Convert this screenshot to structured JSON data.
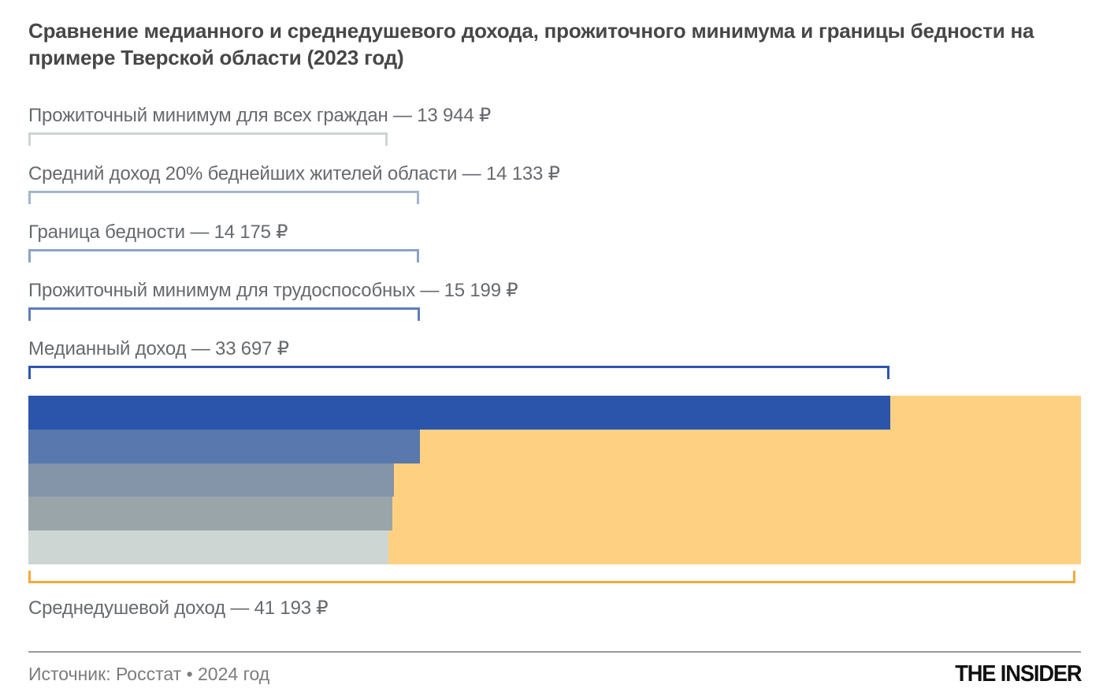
{
  "title": "Сравнение медианного и среднедушевого дохода, прожиточного минимума и границы бедности на примере Тверской области (2023 год)",
  "chart_data": {
    "type": "bar",
    "orientation": "horizontal",
    "unit": "₽",
    "xlim": [
      0,
      41193
    ],
    "region_note": "Тверская область, 2023 год",
    "items": [
      {
        "label": "Прожиточный минимум для всех граждан",
        "value": 13944,
        "display": "Прожиточный минимум для всех граждан — 13 944 ₽",
        "bar_color": "#CDD6D2",
        "bracket_color": "#CBD5D1",
        "bar_pct": 34.2,
        "bracket_pct": 34.1
      },
      {
        "label": "Средний доход 20% беднейших жителей области",
        "value": 14133,
        "display": "Средний доход 20% беднейших жителей области — 14 133 ₽",
        "bar_color": "#9AA5A9",
        "bracket_color": "#A3B6CA",
        "bar_pct": 34.6,
        "bracket_pct": 37.1
      },
      {
        "label": "Граница бедности",
        "value": 14175,
        "display": "Граница бедности — 14 175 ₽",
        "bar_color": "#8495A9",
        "bracket_color": "#8BA3C4",
        "bar_pct": 34.7,
        "bracket_pct": 37.1
      },
      {
        "label": "Прожиточный минимум для трудоспособных",
        "value": 15199,
        "display": "Прожиточный минимум для трудоспособных — 15 199 ₽",
        "bar_color": "#5878AE",
        "bracket_color": "#5C7EBC",
        "bar_pct": 37.2,
        "bracket_pct": 37.2
      },
      {
        "label": "Медианный доход",
        "value": 33697,
        "display": "Медианный доход — 33 697 ₽",
        "bar_color": "#2B55AB",
        "bracket_color": "#2C55AD",
        "bar_pct": 81.9,
        "bracket_pct": 81.8
      }
    ],
    "total": {
      "label": "Среднедушевой доход",
      "value": 41193,
      "display": "Среднедушевой доход — 41 193 ₽",
      "bar_color": "#FDD181",
      "bracket_color": "#F7A93C",
      "bar_pct": 100,
      "bracket_pct": 99.5
    }
  },
  "footer": {
    "source": "Источник: Росстат • 2024 год",
    "logo": "THE INSIDER"
  }
}
